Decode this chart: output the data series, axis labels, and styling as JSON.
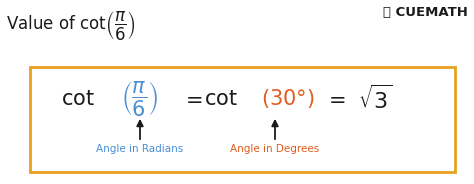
{
  "bg_color": "#ffffff",
  "box_color": "#e8a020",
  "black_color": "#1a1a1a",
  "blue_color": "#4a8fd4",
  "orange_color": "#e05c20",
  "label_blue": "Angle in Radians",
  "label_orange": "Angle in Degrees",
  "figw": 4.74,
  "figh": 1.84,
  "dpi": 100
}
